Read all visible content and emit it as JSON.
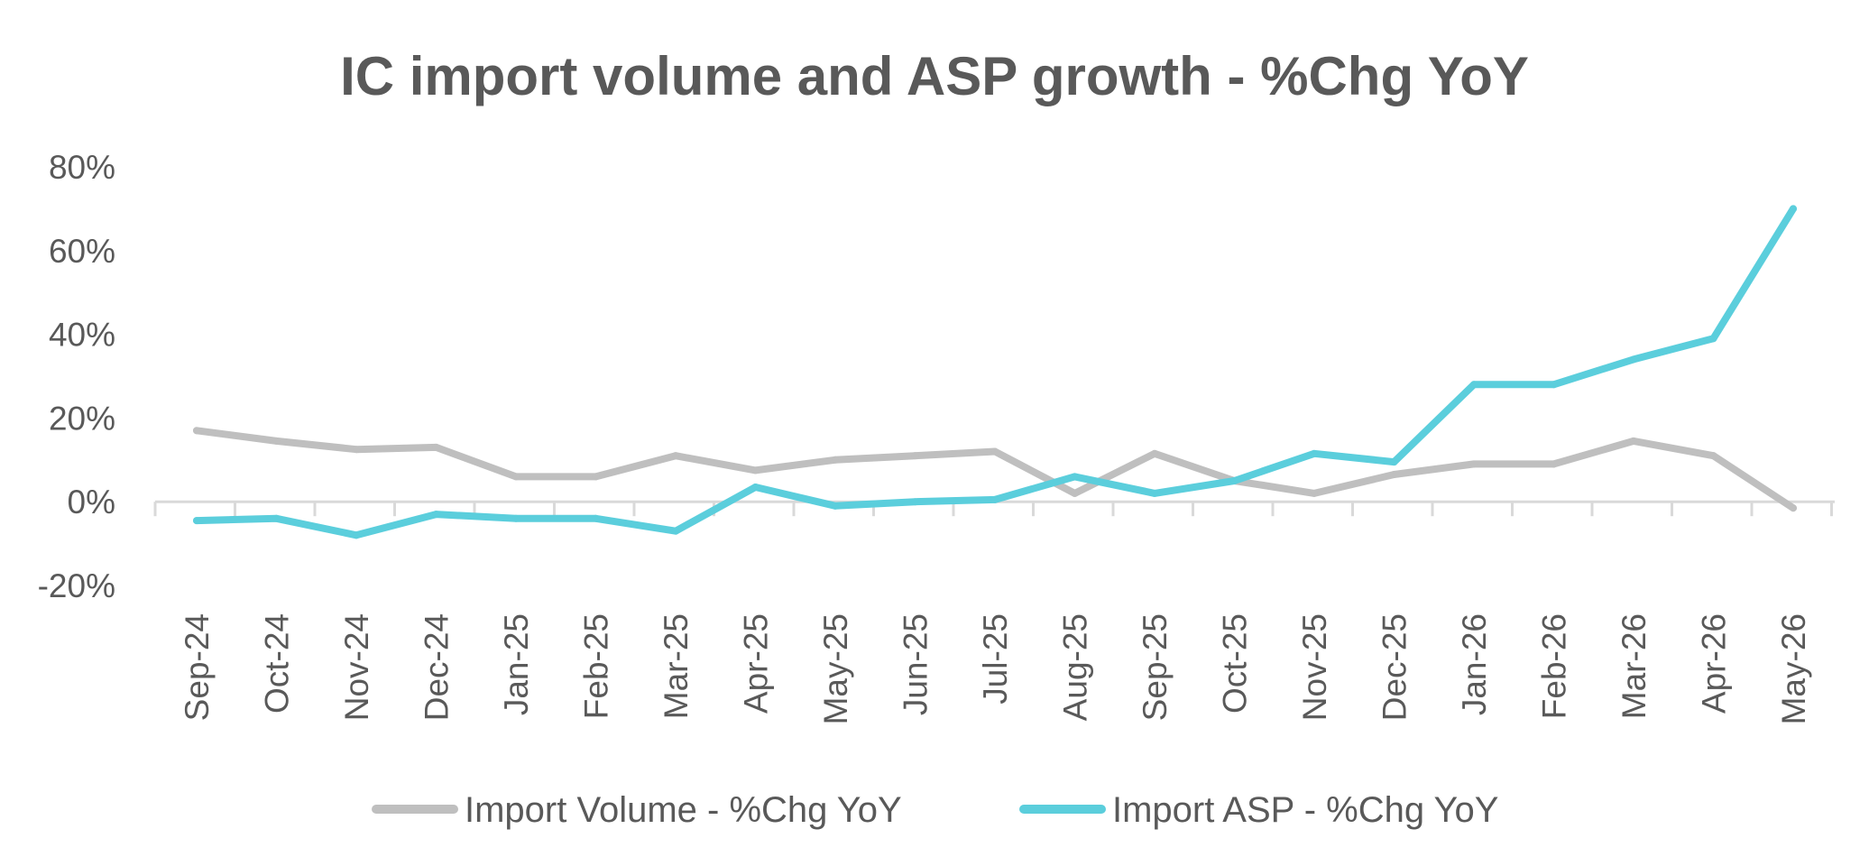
{
  "chart_data": {
    "type": "line",
    "title": "IC import volume and ASP growth - %Chg YoY",
    "xlabel": "",
    "ylabel": "",
    "categories": [
      "Sep-24",
      "Oct-24",
      "Nov-24",
      "Dec-24",
      "Jan-25",
      "Feb-25",
      "Mar-25",
      "Apr-25",
      "May-25",
      "Jun-25",
      "Jul-25",
      "Aug-25",
      "Sep-25",
      "Oct-25",
      "Nov-25",
      "Dec-25",
      "Jan-26",
      "Feb-26",
      "Mar-26",
      "Apr-26",
      "May-26"
    ],
    "ylim": [
      -20,
      80
    ],
    "yticks": [
      -20,
      0,
      20,
      40,
      60,
      80
    ],
    "ytick_labels": [
      "-20%",
      "0%",
      "20%",
      "40%",
      "60%",
      "80%"
    ],
    "grid": false,
    "legend_position": "bottom",
    "series": [
      {
        "name": "Import Volume - %Chg YoY",
        "color": "#BFBFBF",
        "values": [
          17,
          14.5,
          12.5,
          13,
          6,
          6,
          11,
          7.5,
          10,
          11,
          12,
          2,
          11.5,
          5,
          2,
          6.5,
          9,
          9,
          14.5,
          11,
          -1.5
        ]
      },
      {
        "name": "Import ASP - %Chg YoY",
        "color": "#5BCEDC",
        "values": [
          -4.5,
          -4,
          -8,
          -3,
          -4,
          -4,
          -7,
          3.5,
          -1,
          0,
          0.5,
          6,
          2,
          5,
          11.5,
          9.5,
          28,
          28,
          34,
          39,
          70
        ]
      }
    ]
  }
}
